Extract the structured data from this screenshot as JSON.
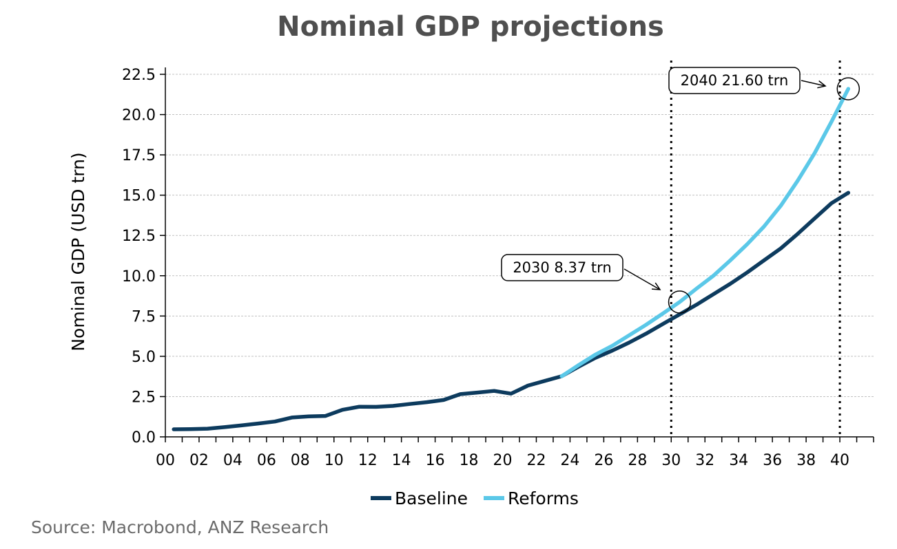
{
  "chart_data": {
    "type": "line",
    "title": "Nominal GDP projections",
    "ylabel": "Nominal GDP (USD trn)",
    "xlabel": "",
    "xlim": [
      2000,
      2042
    ],
    "ylim": [
      0,
      22.5
    ],
    "yticks": [
      0.0,
      2.5,
      5.0,
      7.5,
      10.0,
      12.5,
      15.0,
      17.5,
      20.0,
      22.5
    ],
    "ytick_labels": [
      "0.0",
      "2.5",
      "5.0",
      "7.5",
      "10.0",
      "12.5",
      "15.0",
      "17.5",
      "20.0",
      "22.5"
    ],
    "xticks": [
      2000,
      2002,
      2004,
      2006,
      2008,
      2010,
      2012,
      2014,
      2016,
      2018,
      2020,
      2022,
      2024,
      2026,
      2028,
      2030,
      2032,
      2034,
      2036,
      2038,
      2040
    ],
    "xtick_labels": [
      "00",
      "02",
      "04",
      "06",
      "08",
      "10",
      "12",
      "14",
      "16",
      "18",
      "20",
      "22",
      "24",
      "26",
      "28",
      "30",
      "32",
      "34",
      "36",
      "38",
      "40"
    ],
    "grid": "horizontal dashed",
    "legend_position": "bottom",
    "vertical_markers": [
      2030,
      2040
    ],
    "series": [
      {
        "name": "Baseline",
        "color": "#0d3b5e",
        "x": [
          2000.5,
          2001.5,
          2002.5,
          2003.5,
          2004.5,
          2005.5,
          2006.5,
          2007.5,
          2008.5,
          2009.5,
          2010.5,
          2011.5,
          2012.5,
          2013.5,
          2014.5,
          2015.5,
          2016.5,
          2017.5,
          2018.5,
          2019.5,
          2020.5,
          2021.5,
          2022.5,
          2023.5,
          2024.5,
          2025.5,
          2026.5,
          2027.5,
          2028.5,
          2029.5,
          2030.5,
          2031.5,
          2032.5,
          2033.5,
          2034.5,
          2035.5,
          2036.5,
          2037.5,
          2038.5,
          2039.5,
          2040.5
        ],
        "values": [
          0.47,
          0.48,
          0.51,
          0.6,
          0.71,
          0.83,
          0.95,
          1.2,
          1.27,
          1.3,
          1.68,
          1.87,
          1.86,
          1.92,
          2.04,
          2.15,
          2.29,
          2.65,
          2.75,
          2.85,
          2.68,
          3.18,
          3.47,
          3.76,
          4.35,
          4.9,
          5.35,
          5.85,
          6.4,
          7.0,
          7.6,
          8.2,
          8.85,
          9.5,
          10.2,
          10.95,
          11.7,
          12.6,
          13.55,
          14.5,
          15.15
        ]
      },
      {
        "name": "Reforms",
        "color": "#5bc8e8",
        "x": [
          2023.5,
          2024.5,
          2025.5,
          2026.5,
          2027.5,
          2028.5,
          2029.5,
          2030.5,
          2031.5,
          2032.5,
          2033.5,
          2034.5,
          2035.5,
          2036.5,
          2037.5,
          2038.5,
          2039.5,
          2040.5
        ],
        "values": [
          3.76,
          4.45,
          5.1,
          5.65,
          6.3,
          6.95,
          7.65,
          8.37,
          9.2,
          10.0,
          10.95,
          11.95,
          13.05,
          14.35,
          15.9,
          17.6,
          19.55,
          21.6
        ]
      }
    ],
    "annotations": [
      {
        "text": "2030 8.37 trn",
        "x": 2030.5,
        "y": 8.37
      },
      {
        "text": "2040 21.60 trn",
        "x": 2040.5,
        "y": 21.6
      }
    ],
    "source": "Source: Macrobond, ANZ Research"
  }
}
